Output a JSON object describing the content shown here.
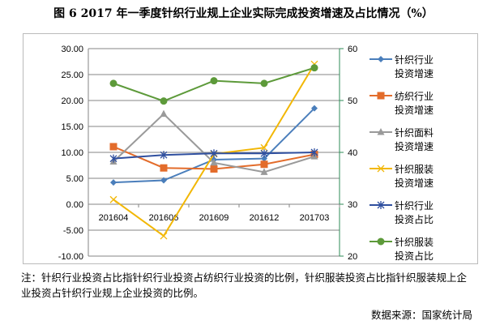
{
  "title": "图 6 2017 年一季度针织行业规上企业实际完成投资增速及占比情况（%）",
  "chart_data": {
    "type": "line",
    "categories": [
      "201604",
      "201606",
      "201609",
      "201612",
      "201703"
    ],
    "left_axis": {
      "ylim": [
        -10,
        30
      ],
      "ticks": [
        "30.00",
        "25.00",
        "20.00",
        "15.00",
        "10.00",
        "5.00",
        "0.00",
        "-5.00",
        "-10.00"
      ]
    },
    "right_axis": {
      "ylim": [
        20,
        60
      ],
      "ticks": [
        "60",
        "50",
        "40",
        "30",
        "20"
      ]
    },
    "legend_placement": "right",
    "series": [
      {
        "name": "针织行业投资增速",
        "name_lines": [
          "针织行业",
          "投资增速"
        ],
        "axis": "left",
        "color": "#4a7ebb",
        "marker": "diamond",
        "values": [
          4.2,
          4.6,
          8.6,
          8.8,
          18.5
        ]
      },
      {
        "name": "纺织行业投资增速",
        "name_lines": [
          "纺织行业",
          "投资增速"
        ],
        "axis": "left",
        "color": "#e36c2b",
        "marker": "square",
        "values": [
          11.1,
          7.0,
          6.8,
          7.7,
          9.6
        ]
      },
      {
        "name": "针织面料投资增速",
        "name_lines": [
          "针织面料",
          "投资增速"
        ],
        "axis": "left",
        "color": "#9a9a9a",
        "marker": "triangle",
        "values": [
          8.2,
          17.4,
          8.0,
          6.2,
          9.2
        ]
      },
      {
        "name": "针织服装投资增速",
        "name_lines": [
          "针织服装",
          "投资增速"
        ],
        "axis": "left",
        "color": "#f2b705",
        "marker": "x",
        "values": [
          0.9,
          -6.1,
          9.7,
          10.9,
          27.0
        ]
      },
      {
        "name": "针织行业投资占比",
        "name_lines": [
          "针织行业",
          "投资占比"
        ],
        "axis": "right",
        "color": "#2f4f9f",
        "marker": "star",
        "values": [
          38.8,
          39.5,
          39.8,
          39.8,
          40.0
        ]
      },
      {
        "name": "针织服装投资占比",
        "name_lines": [
          "针织服装",
          "投资占比"
        ],
        "axis": "right",
        "color": "#5d9a3a",
        "marker": "circle",
        "values": [
          53.3,
          49.9,
          53.8,
          53.3,
          56.3
        ]
      }
    ]
  },
  "note": "注：针织行业投资占比指针织行业投资占纺织行业投资的比例，针织服装投资占比指针织服装规上企业投资占针织行业规上企业投资的比例。",
  "source": "数据来源：国家统计局"
}
